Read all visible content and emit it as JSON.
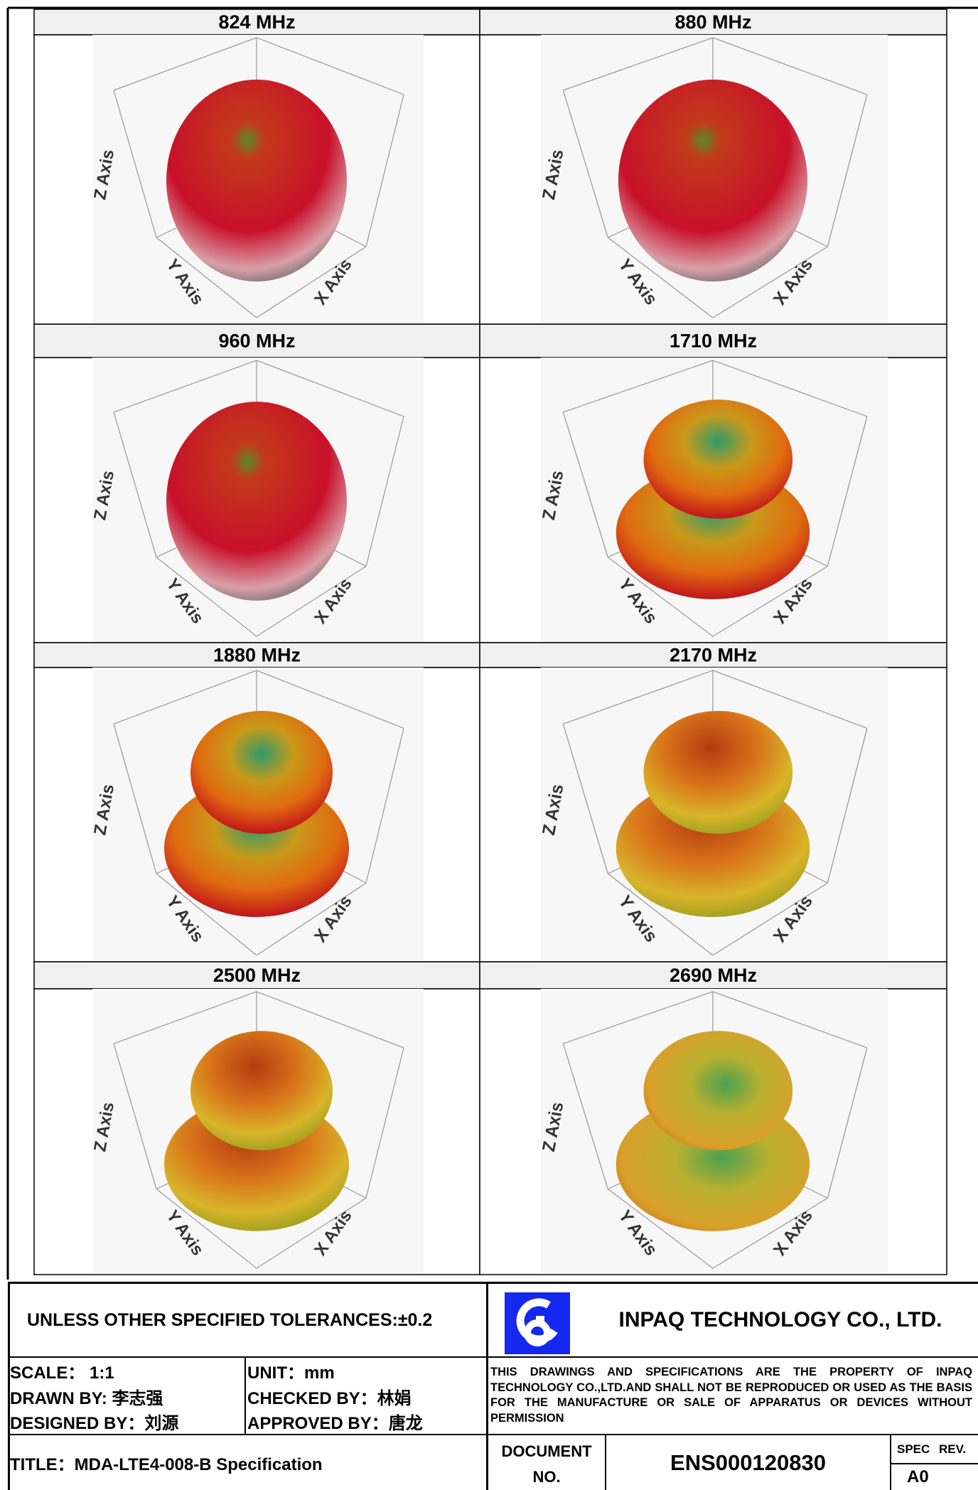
{
  "panels": [
    {
      "label": "824 MHz"
    },
    {
      "label": "880 MHz"
    },
    {
      "label": "960 MHz"
    },
    {
      "label": "1710 MHz"
    },
    {
      "label": "1880 MHz"
    },
    {
      "label": "2170 MHz"
    },
    {
      "label": "2500 MHz"
    },
    {
      "label": "2690 MHz"
    }
  ],
  "axis_labels": {
    "x": "X Axis",
    "y": "Y Axis",
    "z": "Z Axis"
  },
  "title_block": {
    "tolerances": "UNLESS OTHER SPECIFIED TOLERANCES:±0.2",
    "company": "INPAQ TECHNOLOGY CO., LTD.",
    "scale": "SCALE： 1:1",
    "unit": "UNIT：mm",
    "drawn_by": "DRAWN BY: 李志强",
    "checked_by": "CHECKED BY：林娟",
    "designed_by": "DESIGNED BY：刘源",
    "approved_by": "APPROVED BY：唐龙",
    "notice": "THIS DRAWINGS AND SPECIFICATIONS ARE THE PROPERTY OF INPAQ TECHNOLOGY CO.,LTD.AND SHALL NOT BE REPRODUCED OR USED AS THE BASIS FOR THE MANUFACTURE OR SALE OF APPARATUS OR DEVICES WITHOUT PERMISSION",
    "title": "TITLE：MDA-LTE4-008-B Specification",
    "document_label_1": "DOCUMENT",
    "document_label_2": "NO.",
    "document_no": "ENS000120830",
    "spec_rev_label": "SPEC REV.",
    "spec_rev": "A0"
  }
}
